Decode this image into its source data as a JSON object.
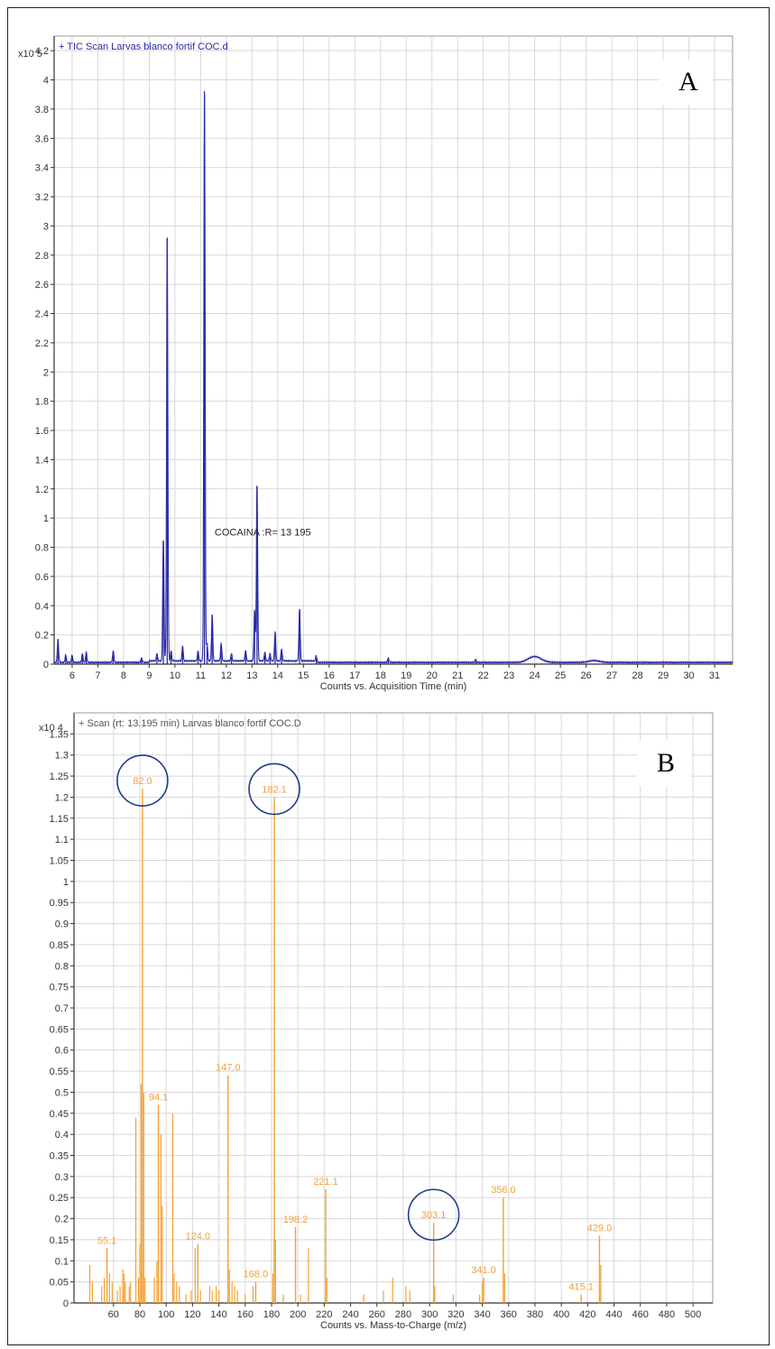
{
  "colors": {
    "tic_line": "#2a2aa8",
    "spectrum_bars": "#f5a030",
    "circle": "#1f3e8a",
    "grid": "#d8d8d8",
    "axis": "#333333"
  },
  "chart_data": [
    {
      "id": "A",
      "type": "line",
      "panel_label": "A",
      "title": "+ TIC Scan Larvas blanco fortif COC.d",
      "y_multiplier": "x10 5",
      "xlabel": "Counts vs. Acquisition Time (min)",
      "ylabel": "",
      "xlim": [
        5.3,
        31.7
      ],
      "ylim": [
        0,
        4.3
      ],
      "x_ticks": [
        6,
        7,
        8,
        9,
        10,
        11,
        12,
        13,
        14,
        15,
        16,
        17,
        18,
        19,
        20,
        21,
        22,
        23,
        24,
        25,
        26,
        27,
        28,
        29,
        30,
        31
      ],
      "y_ticks": [
        "0",
        "0.2",
        "0.4",
        "0.6",
        "0.8",
        "1",
        "1.2",
        "1.4",
        "1.6",
        "1.8",
        "2",
        "2.2",
        "2.4",
        "2.6",
        "2.8",
        "3",
        "3.2",
        "3.4",
        "3.6",
        "3.8",
        "4",
        "4.2"
      ],
      "y_tick_values": [
        0,
        0.2,
        0.4,
        0.6,
        0.8,
        1,
        1.2,
        1.4,
        1.6,
        1.8,
        2,
        2.2,
        2.4,
        2.6,
        2.8,
        3,
        3.2,
        3.4,
        3.6,
        3.8,
        4,
        4.2
      ],
      "annotation": "COCAINA :R= 13 195",
      "peaks": [
        {
          "x": 5.45,
          "y": 0.16
        },
        {
          "x": 5.75,
          "y": 0.05
        },
        {
          "x": 6.0,
          "y": 0.05
        },
        {
          "x": 6.4,
          "y": 0.06
        },
        {
          "x": 6.55,
          "y": 0.07
        },
        {
          "x": 7.6,
          "y": 0.08
        },
        {
          "x": 8.7,
          "y": 0.03
        },
        {
          "x": 9.3,
          "y": 0.05
        },
        {
          "x": 9.55,
          "y": 0.84
        },
        {
          "x": 9.7,
          "y": 2.92
        },
        {
          "x": 9.85,
          "y": 0.07
        },
        {
          "x": 10.3,
          "y": 0.1
        },
        {
          "x": 10.9,
          "y": 0.07
        },
        {
          "x": 11.15,
          "y": 3.91
        },
        {
          "x": 11.25,
          "y": 0.12
        },
        {
          "x": 11.45,
          "y": 0.32
        },
        {
          "x": 11.8,
          "y": 0.12
        },
        {
          "x": 12.2,
          "y": 0.05
        },
        {
          "x": 12.75,
          "y": 0.07
        },
        {
          "x": 13.1,
          "y": 0.35
        },
        {
          "x": 13.195,
          "y": 1.22
        },
        {
          "x": 13.5,
          "y": 0.06
        },
        {
          "x": 13.7,
          "y": 0.05
        },
        {
          "x": 13.9,
          "y": 0.2
        },
        {
          "x": 14.15,
          "y": 0.08
        },
        {
          "x": 14.85,
          "y": 0.36
        },
        {
          "x": 15.5,
          "y": 0.04
        },
        {
          "x": 18.3,
          "y": 0.03
        },
        {
          "x": 21.7,
          "y": 0.02
        }
      ],
      "baseline": 0.012,
      "bumps": [
        {
          "x": 24.0,
          "y": 0.04,
          "w": 0.35
        },
        {
          "x": 26.3,
          "y": 0.012,
          "w": 0.3
        }
      ]
    },
    {
      "id": "B",
      "type": "bar",
      "panel_label": "B",
      "title": "+ Scan (rt: 13.195 min) Larvas blanco fortif COC.D",
      "y_multiplier": "x10 4",
      "xlabel": "Counts vs. Mass-to-Charge (m/z)",
      "ylabel": "",
      "xlim": [
        30,
        515
      ],
      "ylim": [
        0,
        1.4
      ],
      "x_ticks": [
        60,
        80,
        100,
        120,
        140,
        160,
        180,
        200,
        220,
        240,
        260,
        280,
        300,
        320,
        340,
        360,
        380,
        400,
        420,
        440,
        460,
        480,
        500
      ],
      "y_ticks": [
        "0",
        "0.05",
        "0.1",
        "0.15",
        "0.2",
        "0.25",
        "0.3",
        "0.35",
        "0.4",
        "0.45",
        "0.5",
        "0.55",
        "0.6",
        "0.65",
        "0.7",
        "0.75",
        "0.8",
        "0.85",
        "0.9",
        "0.95",
        "1",
        "1.05",
        "1.1",
        "1.15",
        "1.2",
        "1.25",
        "1.3",
        "1.35"
      ],
      "y_tick_values": [
        0,
        0.05,
        0.1,
        0.15,
        0.2,
        0.25,
        0.3,
        0.35,
        0.4,
        0.45,
        0.5,
        0.55,
        0.6,
        0.65,
        0.7,
        0.75,
        0.8,
        0.85,
        0.9,
        0.95,
        1,
        1.05,
        1.1,
        1.15,
        1.2,
        1.25,
        1.3,
        1.35
      ],
      "labeled_peaks": [
        {
          "mz": 55.1,
          "label": "55.1",
          "y": 0.13
        },
        {
          "mz": 82.0,
          "label": "82.0",
          "y": 1.22,
          "circled": true
        },
        {
          "mz": 94.1,
          "label": "94.1",
          "y": 0.47
        },
        {
          "mz": 124.0,
          "label": "124.0",
          "y": 0.14
        },
        {
          "mz": 147.0,
          "label": "147.0",
          "y": 0.54
        },
        {
          "mz": 168.0,
          "label": "168.0",
          "y": 0.05
        },
        {
          "mz": 182.1,
          "label": "182.1",
          "y": 1.2,
          "circled": true
        },
        {
          "mz": 198.2,
          "label": "198.2",
          "y": 0.18
        },
        {
          "mz": 221.1,
          "label": "221.1",
          "y": 0.27
        },
        {
          "mz": 303.1,
          "label": "303.1",
          "y": 0.19,
          "circled": true
        },
        {
          "mz": 341.0,
          "label": "341.0",
          "y": 0.06
        },
        {
          "mz": 356.0,
          "label": "356.0",
          "y": 0.25
        },
        {
          "mz": 415.1,
          "label": "415.1",
          "y": 0.02
        },
        {
          "mz": 429.0,
          "label": "429.0",
          "y": 0.16
        }
      ],
      "minor_peaks": [
        {
          "mz": 42,
          "y": 0.09
        },
        {
          "mz": 44,
          "y": 0.05
        },
        {
          "mz": 51,
          "y": 0.04
        },
        {
          "mz": 53,
          "y": 0.06
        },
        {
          "mz": 57,
          "y": 0.07
        },
        {
          "mz": 59,
          "y": 0.05
        },
        {
          "mz": 63,
          "y": 0.03
        },
        {
          "mz": 65,
          "y": 0.04
        },
        {
          "mz": 67,
          "y": 0.08
        },
        {
          "mz": 68,
          "y": 0.07
        },
        {
          "mz": 69,
          "y": 0.05
        },
        {
          "mz": 72,
          "y": 0.04
        },
        {
          "mz": 73,
          "y": 0.05
        },
        {
          "mz": 77,
          "y": 0.44
        },
        {
          "mz": 79,
          "y": 0.06
        },
        {
          "mz": 80,
          "y": 0.14
        },
        {
          "mz": 81,
          "y": 0.52
        },
        {
          "mz": 83,
          "y": 0.5
        },
        {
          "mz": 84,
          "y": 0.06
        },
        {
          "mz": 91,
          "y": 0.06
        },
        {
          "mz": 93,
          "y": 0.1
        },
        {
          "mz": 96,
          "y": 0.4
        },
        {
          "mz": 97,
          "y": 0.23
        },
        {
          "mz": 105,
          "y": 0.45
        },
        {
          "mz": 106,
          "y": 0.07
        },
        {
          "mz": 108,
          "y": 0.05
        },
        {
          "mz": 110,
          "y": 0.04
        },
        {
          "mz": 115,
          "y": 0.02
        },
        {
          "mz": 119,
          "y": 0.03
        },
        {
          "mz": 122,
          "y": 0.13
        },
        {
          "mz": 126,
          "y": 0.03
        },
        {
          "mz": 133,
          "y": 0.04
        },
        {
          "mz": 135,
          "y": 0.03
        },
        {
          "mz": 138,
          "y": 0.04
        },
        {
          "mz": 140,
          "y": 0.03
        },
        {
          "mz": 148,
          "y": 0.08
        },
        {
          "mz": 150,
          "y": 0.05
        },
        {
          "mz": 152,
          "y": 0.04
        },
        {
          "mz": 154,
          "y": 0.03
        },
        {
          "mz": 160,
          "y": 0.02
        },
        {
          "mz": 166,
          "y": 0.04
        },
        {
          "mz": 181,
          "y": 0.07
        },
        {
          "mz": 183,
          "y": 0.15
        },
        {
          "mz": 189,
          "y": 0.02
        },
        {
          "mz": 202,
          "y": 0.02
        },
        {
          "mz": 208,
          "y": 0.13
        },
        {
          "mz": 222,
          "y": 0.06
        },
        {
          "mz": 250,
          "y": 0.02
        },
        {
          "mz": 265,
          "y": 0.03
        },
        {
          "mz": 272,
          "y": 0.06
        },
        {
          "mz": 282,
          "y": 0.04
        },
        {
          "mz": 285,
          "y": 0.03
        },
        {
          "mz": 304,
          "y": 0.04
        },
        {
          "mz": 318,
          "y": 0.02
        },
        {
          "mz": 338,
          "y": 0.02
        },
        {
          "mz": 340,
          "y": 0.05
        },
        {
          "mz": 357,
          "y": 0.07
        },
        {
          "mz": 430,
          "y": 0.09
        }
      ]
    }
  ]
}
